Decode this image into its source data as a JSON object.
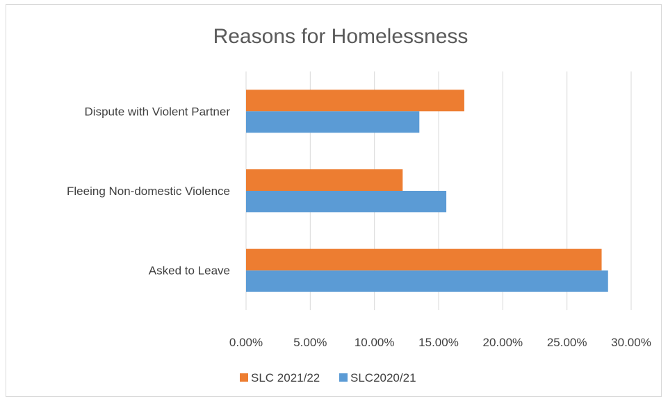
{
  "chart_data": {
    "type": "bar",
    "orientation": "horizontal",
    "title": "Reasons for Homelessness",
    "categories": [
      "Asked to Leave",
      "Fleeing Non-domestic Violence",
      "Dispute with Violent Partner"
    ],
    "series": [
      {
        "name": "SLC 2021/22",
        "color": "#ED7D31",
        "values": [
          0.277,
          0.122,
          0.17
        ]
      },
      {
        "name": "SLC2020/21",
        "color": "#5B9BD5",
        "values": [
          0.282,
          0.156,
          0.135
        ]
      }
    ],
    "xlim": [
      0,
      0.3
    ],
    "xticks": [
      0,
      0.05,
      0.1,
      0.15,
      0.2,
      0.25,
      0.3
    ],
    "xtick_labels": [
      "0.00%",
      "5.00%",
      "10.00%",
      "15.00%",
      "20.00%",
      "25.00%",
      "30.00%"
    ],
    "grid": true,
    "legend": "bottom"
  }
}
